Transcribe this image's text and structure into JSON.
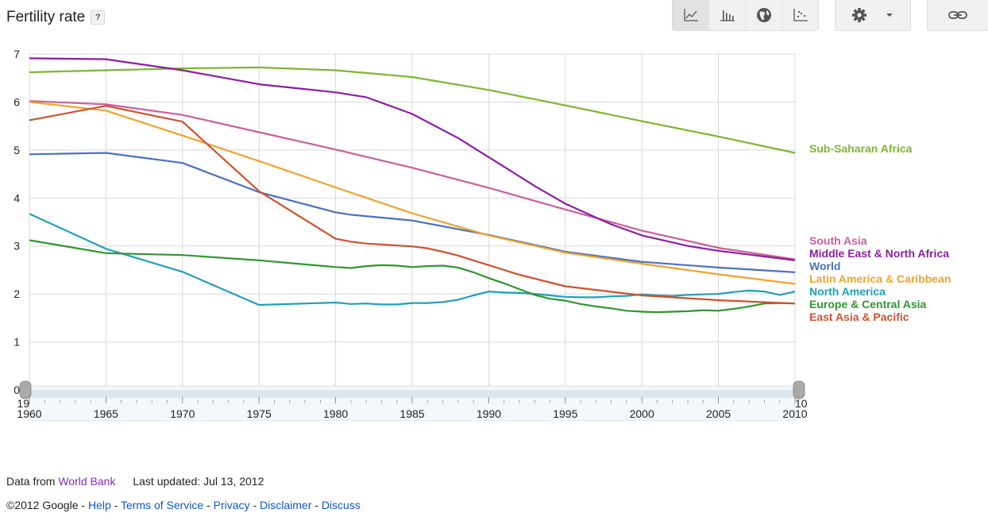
{
  "header": {
    "title": "Fertility rate",
    "help_label": "?"
  },
  "toolbar": {
    "view_buttons": [
      {
        "icon": "line-chart-icon"
      },
      {
        "icon": "bar-chart-icon"
      },
      {
        "icon": "globe-map-icon"
      },
      {
        "icon": "scatter-chart-icon"
      }
    ],
    "settings_icon": "gear-icon",
    "dropdown_icon": "caret-down-icon",
    "link_icon": "link-icon"
  },
  "chart_data": {
    "type": "line",
    "title": "",
    "xlabel": "",
    "ylabel": "",
    "xlim": [
      1960,
      2010
    ],
    "ylim": [
      0,
      7
    ],
    "x_ticks": [
      1960,
      1965,
      1970,
      1975,
      1980,
      1985,
      1990,
      1995,
      2000,
      2005,
      2010
    ],
    "y_ticks": [
      0,
      1,
      2,
      3,
      4,
      5,
      6,
      7
    ],
    "grid": true,
    "legend_placement": "right (inline labels at series ends)",
    "series": [
      {
        "name": "Sub-Saharan Africa",
        "color": "#7cb82f",
        "points": [
          [
            1960,
            6.62
          ],
          [
            1965,
            6.66
          ],
          [
            1970,
            6.7
          ],
          [
            1975,
            6.72
          ],
          [
            1980,
            6.66
          ],
          [
            1985,
            6.52
          ],
          [
            1990,
            6.25
          ],
          [
            1995,
            5.93
          ],
          [
            2000,
            5.6
          ],
          [
            2005,
            5.28
          ],
          [
            2010,
            4.94
          ]
        ]
      },
      {
        "name": "South Asia",
        "color": "#cc5e9b",
        "points": [
          [
            1960,
            6.02
          ],
          [
            1965,
            5.95
          ],
          [
            1970,
            5.73
          ],
          [
            1975,
            5.37
          ],
          [
            1980,
            5.01
          ],
          [
            1985,
            4.63
          ],
          [
            1990,
            4.21
          ],
          [
            1995,
            3.76
          ],
          [
            2000,
            3.32
          ],
          [
            2005,
            2.96
          ],
          [
            2010,
            2.72
          ]
        ]
      },
      {
        "name": "Middle East & North Africa",
        "color": "#8b1f9f",
        "points": [
          [
            1960,
            6.91
          ],
          [
            1965,
            6.89
          ],
          [
            1970,
            6.66
          ],
          [
            1975,
            6.37
          ],
          [
            1980,
            6.2
          ],
          [
            1982,
            6.1
          ],
          [
            1985,
            5.75
          ],
          [
            1988,
            5.25
          ],
          [
            1990,
            4.85
          ],
          [
            1993,
            4.25
          ],
          [
            1995,
            3.88
          ],
          [
            1998,
            3.45
          ],
          [
            2000,
            3.22
          ],
          [
            2003,
            3.0
          ],
          [
            2005,
            2.9
          ],
          [
            2010,
            2.7
          ]
        ]
      },
      {
        "name": "World",
        "color": "#4a70c3",
        "points": [
          [
            1960,
            4.91
          ],
          [
            1965,
            4.94
          ],
          [
            1970,
            4.73
          ],
          [
            1975,
            4.12
          ],
          [
            1980,
            3.7
          ],
          [
            1981,
            3.65
          ],
          [
            1985,
            3.53
          ],
          [
            1990,
            3.23
          ],
          [
            1995,
            2.88
          ],
          [
            2000,
            2.67
          ],
          [
            2005,
            2.55
          ],
          [
            2010,
            2.45
          ]
        ]
      },
      {
        "name": "Latin America & Caribbean",
        "color": "#f0a32c",
        "points": [
          [
            1960,
            6.0
          ],
          [
            1965,
            5.82
          ],
          [
            1970,
            5.3
          ],
          [
            1975,
            4.77
          ],
          [
            1980,
            4.22
          ],
          [
            1985,
            3.68
          ],
          [
            1990,
            3.22
          ],
          [
            1995,
            2.86
          ],
          [
            2000,
            2.63
          ],
          [
            2005,
            2.41
          ],
          [
            2010,
            2.21
          ]
        ]
      },
      {
        "name": "North America",
        "color": "#1fa0b8",
        "points": [
          [
            1960,
            3.67
          ],
          [
            1965,
            2.94
          ],
          [
            1970,
            2.46
          ],
          [
            1975,
            1.77
          ],
          [
            1980,
            1.82
          ],
          [
            1981,
            1.79
          ],
          [
            1982,
            1.8
          ],
          [
            1983,
            1.78
          ],
          [
            1984,
            1.78
          ],
          [
            1985,
            1.81
          ],
          [
            1986,
            1.81
          ],
          [
            1987,
            1.83
          ],
          [
            1988,
            1.88
          ],
          [
            1989,
            1.97
          ],
          [
            1990,
            2.05
          ],
          [
            1991,
            2.03
          ],
          [
            1992,
            2.02
          ],
          [
            1993,
            2.0
          ],
          [
            1994,
            1.97
          ],
          [
            1995,
            1.94
          ],
          [
            1996,
            1.93
          ],
          [
            1997,
            1.93
          ],
          [
            1998,
            1.95
          ],
          [
            1999,
            1.96
          ],
          [
            2000,
            1.99
          ],
          [
            2001,
            1.97
          ],
          [
            2002,
            1.96
          ],
          [
            2003,
            1.98
          ],
          [
            2004,
            1.99
          ],
          [
            2005,
            2.0
          ],
          [
            2006,
            2.04
          ],
          [
            2007,
            2.07
          ],
          [
            2008,
            2.05
          ],
          [
            2009,
            1.98
          ],
          [
            2010,
            2.05
          ]
        ]
      },
      {
        "name": "Europe & Central Asia",
        "color": "#2f9630",
        "points": [
          [
            1960,
            3.12
          ],
          [
            1965,
            2.85
          ],
          [
            1970,
            2.81
          ],
          [
            1975,
            2.7
          ],
          [
            1980,
            2.56
          ],
          [
            1981,
            2.54
          ],
          [
            1982,
            2.58
          ],
          [
            1983,
            2.6
          ],
          [
            1984,
            2.59
          ],
          [
            1985,
            2.56
          ],
          [
            1986,
            2.58
          ],
          [
            1987,
            2.59
          ],
          [
            1988,
            2.55
          ],
          [
            1989,
            2.45
          ],
          [
            1990,
            2.33
          ],
          [
            1991,
            2.22
          ],
          [
            1992,
            2.1
          ],
          [
            1993,
            1.98
          ],
          [
            1994,
            1.9
          ],
          [
            1995,
            1.86
          ],
          [
            1996,
            1.79
          ],
          [
            1997,
            1.74
          ],
          [
            1998,
            1.7
          ],
          [
            1999,
            1.65
          ],
          [
            2000,
            1.63
          ],
          [
            2001,
            1.62
          ],
          [
            2002,
            1.63
          ],
          [
            2003,
            1.64
          ],
          [
            2004,
            1.66
          ],
          [
            2005,
            1.65
          ],
          [
            2006,
            1.69
          ],
          [
            2007,
            1.74
          ],
          [
            2008,
            1.8
          ],
          [
            2009,
            1.81
          ],
          [
            2010,
            1.8
          ]
        ]
      },
      {
        "name": "East Asia & Pacific",
        "color": "#d1512d",
        "points": [
          [
            1960,
            5.62
          ],
          [
            1965,
            5.92
          ],
          [
            1970,
            5.59
          ],
          [
            1975,
            4.14
          ],
          [
            1980,
            3.15
          ],
          [
            1981,
            3.09
          ],
          [
            1982,
            3.05
          ],
          [
            1983,
            3.03
          ],
          [
            1985,
            2.99
          ],
          [
            1986,
            2.95
          ],
          [
            1987,
            2.88
          ],
          [
            1988,
            2.8
          ],
          [
            1990,
            2.6
          ],
          [
            1992,
            2.4
          ],
          [
            1995,
            2.16
          ],
          [
            2000,
            1.97
          ],
          [
            2005,
            1.87
          ],
          [
            2010,
            1.8
          ]
        ]
      }
    ],
    "label_order": [
      "Sub-Saharan Africa",
      "South Asia",
      "Middle East & North Africa",
      "World",
      "Latin America & Caribbean",
      "North America",
      "Europe & Central Asia",
      "East Asia & Pacific"
    ]
  },
  "range_slider": {
    "start": 1960,
    "end": 2010
  },
  "footer": {
    "data_from_prefix": "Data from",
    "data_source_link": "World Bank",
    "last_updated": "Last updated: Jul 13, 2012",
    "copyright": "©2012 Google",
    "links": [
      "Help",
      "Terms of Service",
      "Privacy",
      "Disclaimer",
      "Discuss"
    ]
  }
}
